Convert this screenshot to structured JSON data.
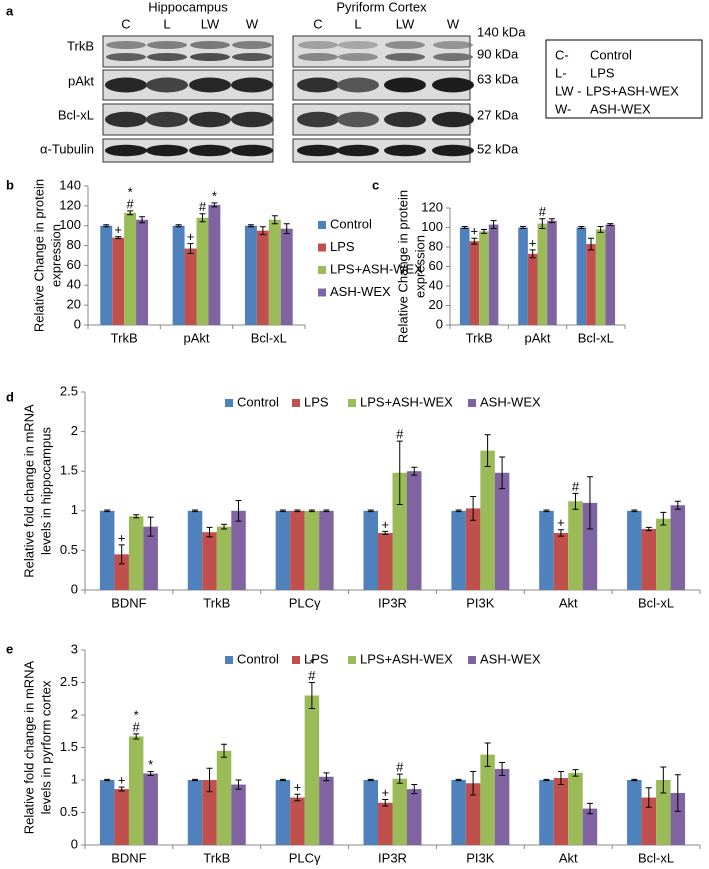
{
  "panel_a": {
    "label": "a",
    "regions": [
      "Hippocampus",
      "Pyriform Cortex"
    ],
    "lanes": [
      "C",
      "L",
      "LW",
      "W"
    ],
    "rows": [
      "TrkB",
      "pAkt",
      "Bcl-xL",
      "α-Tubulin"
    ],
    "sizes": [
      "140 kDa",
      "90 kDa",
      "63 kDa",
      "27 kDa",
      "52 kDa"
    ],
    "key": [
      [
        "C-",
        "Control"
      ],
      [
        "L-",
        "LPS"
      ],
      [
        "LW -",
        "LPS+ASH-WEX"
      ],
      [
        "W-",
        "ASH-WEX"
      ]
    ]
  },
  "chart_data": [
    {
      "type": "bar",
      "label": "b",
      "ylabel": [
        "Relative Change in protein",
        "expression"
      ],
      "categories": [
        "TrkB",
        "pAkt",
        "Bcl-xL"
      ],
      "ylim": [
        0,
        140
      ],
      "yticks": [
        0,
        20,
        40,
        60,
        80,
        100,
        120,
        140
      ],
      "legend": "right",
      "series": [
        {
          "name": "Control",
          "color": "#4f81bd",
          "values": [
            100,
            100,
            100
          ],
          "errors": [
            1,
            1,
            1
          ]
        },
        {
          "name": "LPS",
          "color": "#c0504d",
          "values": [
            88,
            77,
            95
          ],
          "errors": [
            1,
            5,
            4
          ],
          "markers": [
            [
              "+"
            ],
            [
              "+"
            ],
            null
          ]
        },
        {
          "name": "LPS+ASH-WEX",
          "color": "#9bbb59",
          "values": [
            113,
            108,
            106
          ],
          "errors": [
            2,
            4,
            4
          ],
          "markers": [
            [
              "*",
              "#"
            ],
            [
              "#"
            ],
            null
          ]
        },
        {
          "name": "ASH-WEX",
          "color": "#8064a2",
          "values": [
            106,
            121,
            97
          ],
          "errors": [
            3,
            2,
            5
          ],
          "markers": [
            null,
            [
              "*"
            ],
            null
          ]
        }
      ]
    },
    {
      "type": "bar",
      "label": "c",
      "ylabel": [
        "Relative Change in protein",
        "expression"
      ],
      "categories": [
        "TrkB",
        "pAkt",
        "Bcl-xL"
      ],
      "ylim": [
        0,
        120
      ],
      "yticks": [
        0,
        20,
        40,
        60,
        80,
        100,
        120
      ],
      "series": [
        {
          "name": "Control",
          "color": "#4f81bd",
          "values": [
            100,
            100,
            100
          ],
          "errors": [
            1,
            1,
            1
          ]
        },
        {
          "name": "LPS",
          "color": "#c0504d",
          "values": [
            86,
            73,
            83
          ],
          "errors": [
            3,
            4,
            6
          ],
          "markers": [
            [
              "+"
            ],
            [
              "+"
            ],
            null
          ]
        },
        {
          "name": "LPS+ASH-WEX",
          "color": "#9bbb59",
          "values": [
            96,
            104,
            98
          ],
          "errors": [
            2,
            5,
            3
          ],
          "markers": [
            null,
            [
              "#"
            ],
            null
          ]
        },
        {
          "name": "ASH-WEX",
          "color": "#8064a2",
          "values": [
            103,
            107,
            103
          ],
          "errors": [
            4,
            2,
            1
          ]
        }
      ]
    },
    {
      "type": "bar",
      "label": "d",
      "ylabel": [
        "Relative fold change in mRNA",
        "levels in hippocampus"
      ],
      "categories": [
        "BDNF",
        "TrkB",
        "PLCγ",
        "IP3R",
        "PI3K",
        "Akt",
        "Bcl-xL"
      ],
      "ylim": [
        0,
        2.5
      ],
      "yticks": [
        0,
        0.5,
        1,
        1.5,
        2,
        2.5
      ],
      "legend": "top",
      "series": [
        {
          "name": "Control",
          "color": "#4f81bd",
          "values": [
            1,
            1,
            1,
            1,
            1,
            1,
            1
          ],
          "errors": [
            0.01,
            0.01,
            0.01,
            0.01,
            0.01,
            0.01,
            0.01
          ]
        },
        {
          "name": "LPS",
          "color": "#c0504d",
          "values": [
            0.45,
            0.73,
            1.0,
            0.72,
            1.03,
            0.72,
            0.77
          ],
          "errors": [
            0.12,
            0.06,
            0.01,
            0.02,
            0.15,
            0.04,
            0.02
          ],
          "markers": [
            [
              "+"
            ],
            null,
            null,
            [
              "+"
            ],
            null,
            [
              "+"
            ],
            null
          ]
        },
        {
          "name": "LPS+ASH-WEX",
          "color": "#9bbb59",
          "values": [
            0.93,
            0.8,
            1.0,
            1.48,
            1.76,
            1.12,
            0.9
          ],
          "errors": [
            0.02,
            0.03,
            0.01,
            0.4,
            0.2,
            0.1,
            0.08
          ],
          "markers": [
            null,
            null,
            null,
            [
              "#"
            ],
            null,
            [
              "#"
            ],
            null
          ]
        },
        {
          "name": "ASH-WEX",
          "color": "#8064a2",
          "values": [
            0.8,
            1.0,
            1.0,
            1.5,
            1.48,
            1.1,
            1.07
          ],
          "errors": [
            0.12,
            0.13,
            0.01,
            0.05,
            0.2,
            0.33,
            0.05
          ]
        }
      ]
    },
    {
      "type": "bar",
      "label": "e",
      "ylabel": [
        "Relative fold change in mRNA",
        "levels in pyrform cortex"
      ],
      "categories": [
        "BDNF",
        "TrkB",
        "PLCγ",
        "IP3R",
        "PI3K",
        "Akt",
        "Bcl-xL"
      ],
      "ylim": [
        0,
        3
      ],
      "yticks": [
        0,
        0.5,
        1,
        1.5,
        2,
        2.5,
        3
      ],
      "legend": "top",
      "series": [
        {
          "name": "Control",
          "color": "#4f81bd",
          "values": [
            1,
            1,
            1,
            1,
            1,
            1,
            1
          ],
          "errors": [
            0.01,
            0.01,
            0.01,
            0.01,
            0.01,
            0.01,
            0.01
          ]
        },
        {
          "name": "LPS",
          "color": "#c0504d",
          "values": [
            0.86,
            1.0,
            0.73,
            0.65,
            0.95,
            1.03,
            0.73
          ],
          "errors": [
            0.03,
            0.18,
            0.05,
            0.05,
            0.18,
            0.1,
            0.15
          ],
          "markers": [
            [
              "+"
            ],
            null,
            [
              "+"
            ],
            [
              "+"
            ],
            null,
            null,
            null
          ]
        },
        {
          "name": "LPS+ASH-WEX",
          "color": "#9bbb59",
          "values": [
            1.67,
            1.45,
            2.3,
            1.02,
            1.39,
            1.11,
            1.0
          ],
          "errors": [
            0.04,
            0.1,
            0.2,
            0.07,
            0.18,
            0.05,
            0.2
          ],
          "markers": [
            [
              "*",
              "#"
            ],
            null,
            [
              "*",
              "#"
            ],
            [
              "#"
            ],
            null,
            null,
            null
          ]
        },
        {
          "name": "ASH-WEX",
          "color": "#8064a2",
          "values": [
            1.1,
            0.93,
            1.05,
            0.86,
            1.17,
            0.56,
            0.8
          ],
          "errors": [
            0.03,
            0.07,
            0.06,
            0.07,
            0.1,
            0.08,
            0.28
          ],
          "markers": [
            [
              "*"
            ],
            null,
            null,
            null,
            null,
            null,
            null
          ]
        }
      ]
    }
  ]
}
